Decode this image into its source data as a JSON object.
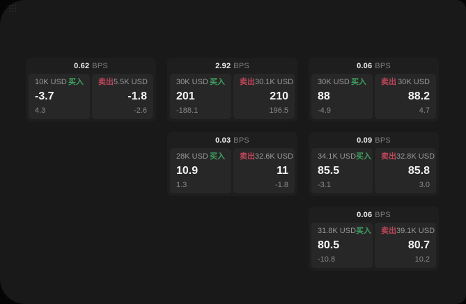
{
  "labels": {
    "buy": "买入",
    "sell": "卖出",
    "bps_unit": "BPS"
  },
  "colors": {
    "buy_green": "#3f9f60",
    "sell_red": "#bc4659",
    "window_bg": "#191919",
    "card_bg": "#1e1e1e",
    "panel_bg": "#272727"
  },
  "cards": [
    {
      "bps": "0.62",
      "row": 1,
      "column": 1,
      "buy_side": {
        "amount": "10K USD",
        "price": "-3.7",
        "delta": "4.3"
      },
      "sell_side": {
        "amount": "5.5K USD",
        "price": "-1.8",
        "delta": "-2.6"
      }
    },
    {
      "bps": "2.92",
      "row": 1,
      "column": 2,
      "buy_side": {
        "amount": "30K USD",
        "price": "201",
        "delta": "-188.1"
      },
      "sell_side": {
        "amount": "30.1K USD",
        "price": "210",
        "delta": "196.5"
      }
    },
    {
      "bps": "0.06",
      "row": 1,
      "column": 3,
      "buy_side": {
        "amount": "30K USD",
        "price": "88",
        "delta": "-4.9"
      },
      "sell_side": {
        "amount": "30K USD",
        "price": "88.2",
        "delta": "4.7"
      }
    },
    {
      "bps": "0.03",
      "row": 2,
      "column": 2,
      "buy_side": {
        "amount": "28K USD",
        "price": "10.9",
        "delta": "1.3"
      },
      "sell_side": {
        "amount": "32.6K USD",
        "price": "11",
        "delta": "-1.8"
      }
    },
    {
      "bps": "0.09",
      "row": 2,
      "column": 3,
      "buy_side": {
        "amount": "34.1K USD",
        "price": "85.5",
        "delta": "-3.1"
      },
      "sell_side": {
        "amount": "32.8K USD",
        "price": "85.8",
        "delta": "3.0"
      }
    },
    {
      "bps": "0.06",
      "row": 3,
      "column": 3,
      "buy_side": {
        "amount": "31.8K USD",
        "price": "80.5",
        "delta": "-10.8"
      },
      "sell_side": {
        "amount": "39.1K USD",
        "price": "80.7",
        "delta": "10.2"
      }
    }
  ]
}
